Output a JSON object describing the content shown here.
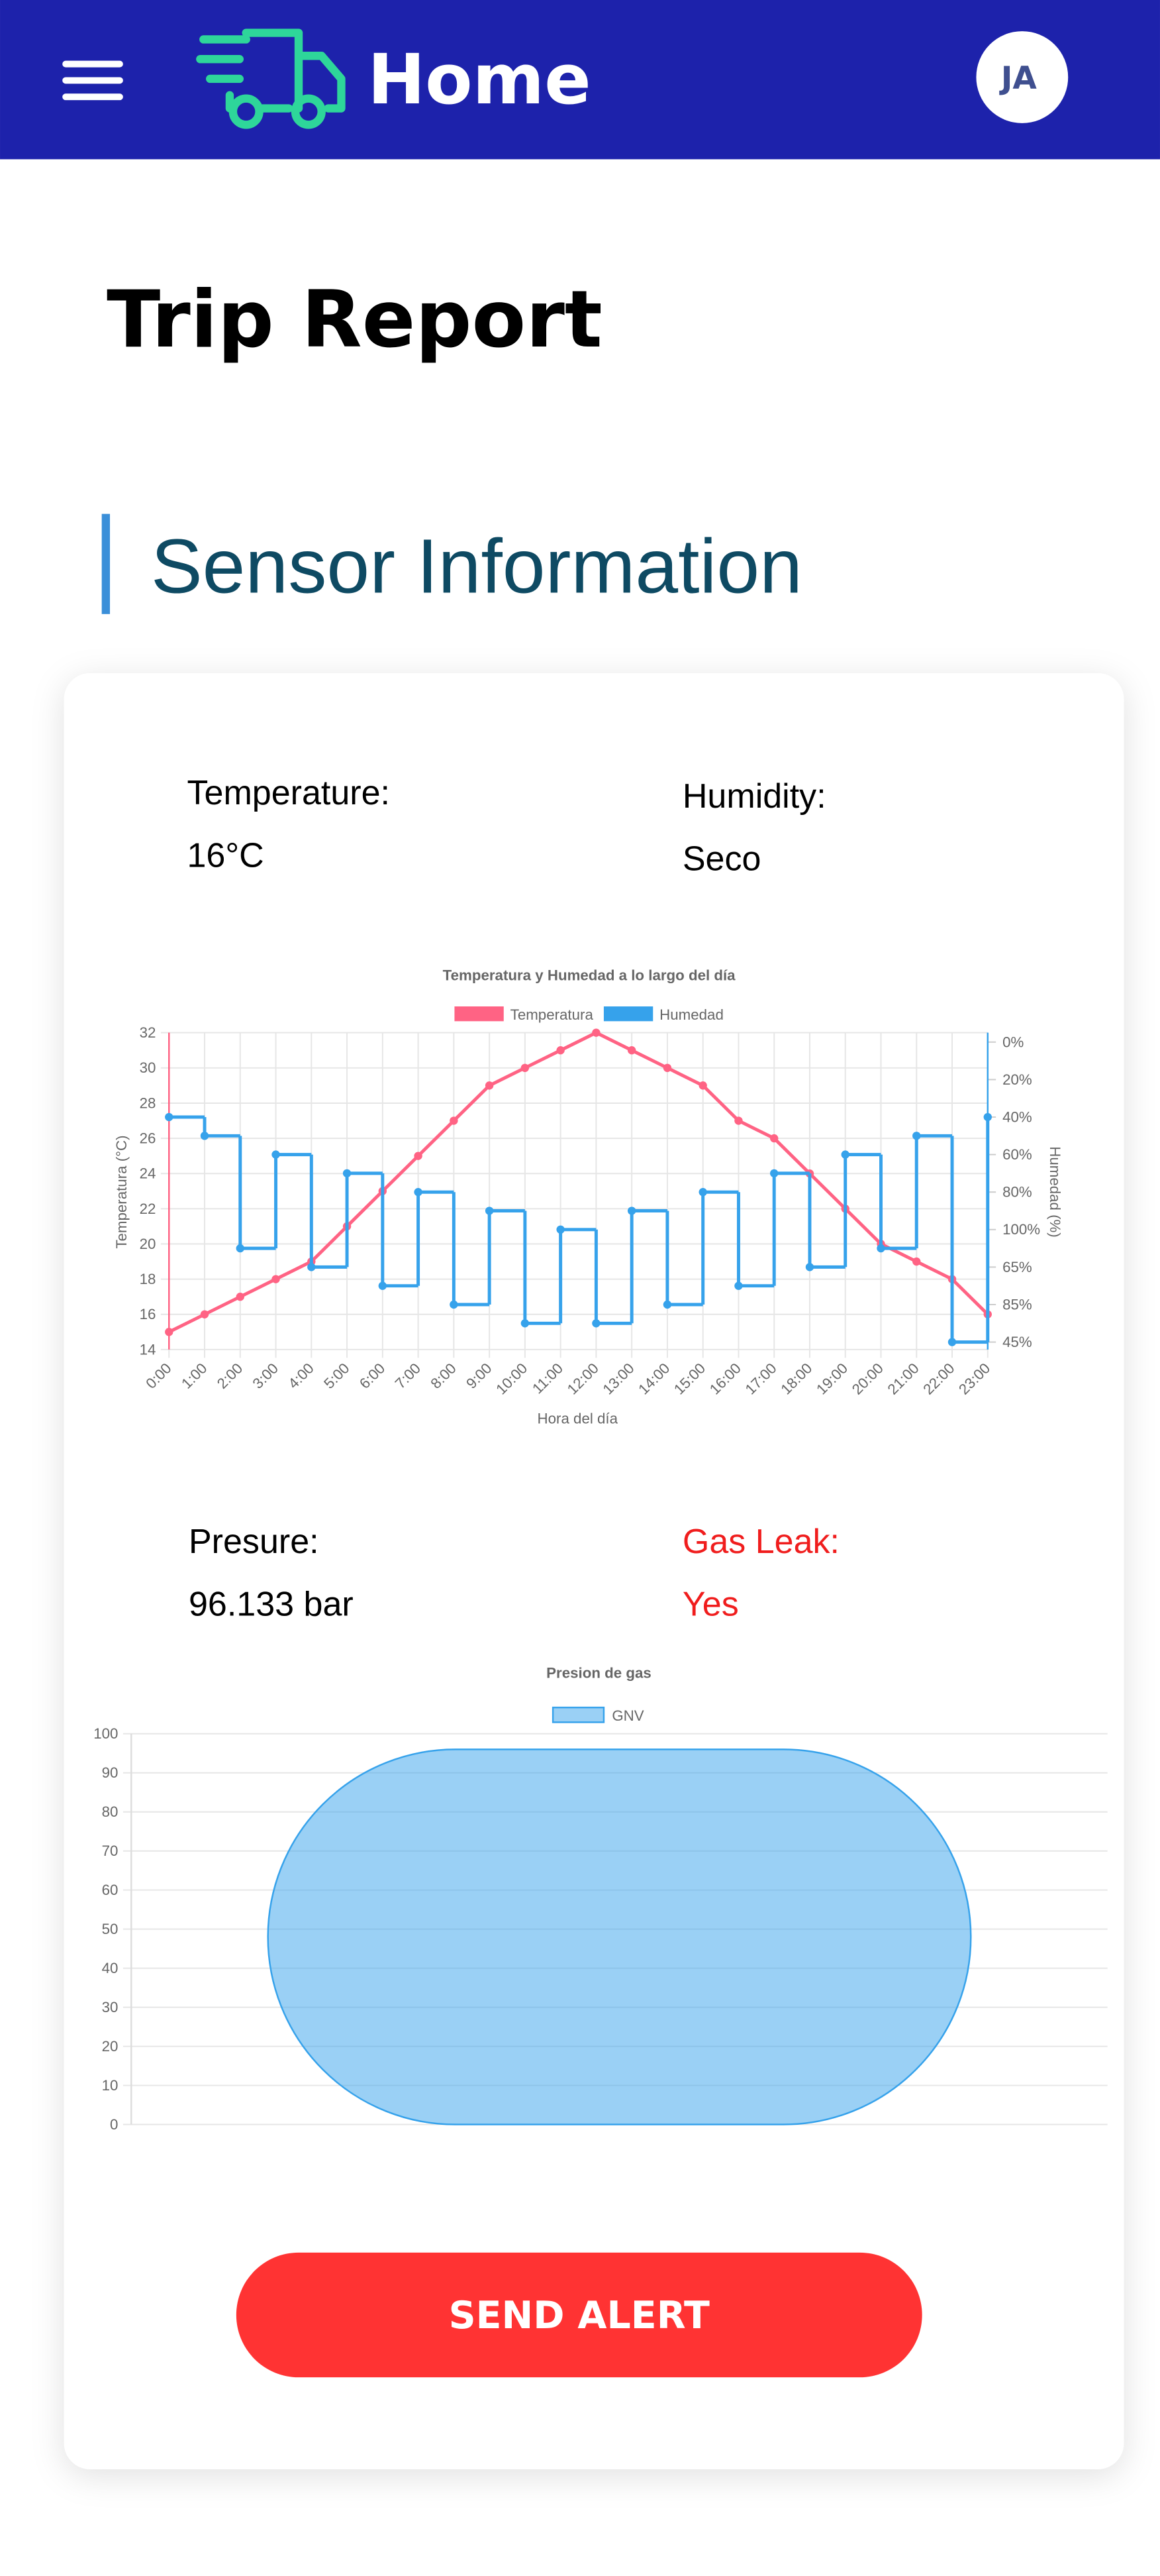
{
  "header": {
    "title": "Home",
    "avatar": "JA"
  },
  "page_title": "Trip Report",
  "section_title": "Sensor Information",
  "fields": {
    "temperature": {
      "label": "Temperature:",
      "value": "16°C"
    },
    "humidity": {
      "label": "Humidity:",
      "value": "Seco"
    },
    "pressure": {
      "label": "Presure:",
      "value": "96.133 bar"
    },
    "gas_leak": {
      "label": "Gas Leak:",
      "value": "Yes"
    }
  },
  "chart_data": [
    {
      "type": "line",
      "title": "Temperatura y Humedad a lo largo del día",
      "x_label": "Hora del día",
      "y_label": "Temperatura (°C)",
      "y2_label": "Humedad (%)",
      "categories": [
        "0:00",
        "1:00",
        "2:00",
        "3:00",
        "4:00",
        "5:00",
        "6:00",
        "7:00",
        "8:00",
        "9:00",
        "10:00",
        "11:00",
        "12:00",
        "13:00",
        "14:00",
        "15:00",
        "16:00",
        "17:00",
        "18:00",
        "19:00",
        "20:00",
        "21:00",
        "22:00",
        "23:00"
      ],
      "series": [
        {
          "name": "Temperatura",
          "color": "#ff6384",
          "values": [
            15,
            16,
            17,
            18,
            19,
            21,
            23,
            25,
            27,
            29,
            30,
            31,
            32,
            31,
            30,
            29,
            27,
            26,
            24,
            22,
            20,
            19,
            18,
            16
          ]
        },
        {
          "name": "Humedad",
          "color": "#36a2eb",
          "axis": "y2",
          "stepped": true,
          "values": [
            2,
            2.5,
            5.5,
            3,
            6,
            3.5,
            6.5,
            4,
            7,
            4.5,
            7.5,
            5,
            7.5,
            4.5,
            7,
            4,
            6.5,
            3.5,
            6,
            3,
            5.5,
            2.5,
            8,
            2
          ]
        }
      ],
      "ylim": [
        14,
        32
      ],
      "yticks": [
        14,
        16,
        18,
        20,
        22,
        24,
        26,
        28,
        30,
        32
      ],
      "y2lim": [
        -0.25,
        8.2
      ],
      "y2ticks": [
        {
          "value": 0,
          "label": "0%"
        },
        {
          "value": 1,
          "label": "20%"
        },
        {
          "value": 2,
          "label": "40%"
        },
        {
          "value": 3,
          "label": "60%"
        },
        {
          "value": 4,
          "label": "80%"
        },
        {
          "value": 5,
          "label": "100%"
        },
        {
          "value": 6,
          "label": "65%"
        },
        {
          "value": 7,
          "label": "85%"
        },
        {
          "value": 8,
          "label": "45%"
        }
      ],
      "grid": true
    },
    {
      "type": "bar",
      "title": "Presion de gas",
      "categories": [
        null
      ],
      "series": [
        {
          "name": "GNV",
          "color": "#36a2eb",
          "values": [
            96
          ]
        }
      ],
      "ylim": [
        0,
        100
      ],
      "yticks": [
        0,
        10,
        20,
        30,
        40,
        50,
        60,
        70,
        80,
        90,
        100
      ],
      "grid": true
    }
  ],
  "button": "SEND ALERT"
}
